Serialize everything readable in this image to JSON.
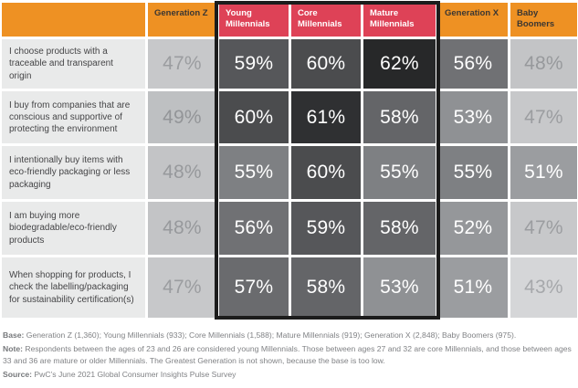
{
  "chart_data": {
    "type": "heatmap",
    "unit": "%",
    "columns": [
      "Generation Z",
      "Young Millennials",
      "Core Millennials",
      "Mature Millennials",
      "Generation X",
      "Baby Boomers"
    ],
    "highlighted_columns": [
      "Young Millennials",
      "Core Millennials",
      "Mature Millennials"
    ],
    "rows": [
      {
        "question": "I choose products with a traceable and transparent origin",
        "values": [
          47,
          59,
          60,
          62,
          56,
          48
        ]
      },
      {
        "question": "I buy from companies that are conscious and supportive of protecting the environment",
        "values": [
          49,
          60,
          61,
          58,
          53,
          47
        ]
      },
      {
        "question": "I intentionally buy items with eco-friendly packaging or less packaging",
        "values": [
          48,
          55,
          60,
          55,
          55,
          51
        ]
      },
      {
        "question": "I am buying more biodegradable/eco-friendly products",
        "values": [
          48,
          56,
          59,
          58,
          52,
          47
        ]
      },
      {
        "question": "When shopping for products, I check the labelling/packaging for sustainability certification(s)",
        "values": [
          47,
          57,
          58,
          53,
          51,
          43
        ]
      }
    ],
    "value_range": [
      43,
      62
    ]
  },
  "styles": {
    "orange": "#EE9123",
    "pink": "#DE4257",
    "box_border": "#1C1C1C",
    "question_bg": "#E9EAEA",
    "value_colors": {
      "43": {
        "bg": "#D5D6D8",
        "fg": "#A6A8AB"
      },
      "47": {
        "bg": "#C7C8CA",
        "fg": "#9B9DA0"
      },
      "48": {
        "bg": "#C3C4C6",
        "fg": "#97999C"
      },
      "49": {
        "bg": "#BEC0C2",
        "fg": "#939598"
      },
      "51": {
        "bg": "#9B9DA0",
        "fg": "#FFFFFF"
      },
      "52": {
        "bg": "#95979A",
        "fg": "#FFFFFF"
      },
      "53": {
        "bg": "#8F9194",
        "fg": "#FFFFFF"
      },
      "55": {
        "bg": "#7E8083",
        "fg": "#FFFFFF"
      },
      "56": {
        "bg": "#707174",
        "fg": "#FFFFFF"
      },
      "57": {
        "bg": "#6A6B6E",
        "fg": "#FFFFFF"
      },
      "58": {
        "bg": "#646568",
        "fg": "#FFFFFF"
      },
      "59": {
        "bg": "#56575A",
        "fg": "#FFFFFF"
      },
      "60": {
        "bg": "#4B4C4E",
        "fg": "#FFFFFF"
      },
      "61": {
        "bg": "#2F3032",
        "fg": "#FFFFFF"
      },
      "62": {
        "bg": "#272829",
        "fg": "#FFFFFF"
      }
    }
  },
  "footer": {
    "base_label": "Base:",
    "base_text": "Generation Z (1,360); Young Millennials (933); Core Millennials (1,588); Mature Millennials (919); Generation X (2,848); Baby Boomers (975).",
    "note_label": "Note:",
    "note_text": "Respondents between the ages of 23 and 26 are considered young Millennials. Those between ages 27 and 32 are core Millennials, and those between ages 33 and 36 are mature or older Millennials. The Greatest Generation is not shown, because the base is too low.",
    "source_label": "Source:",
    "source_text": "PwC’s June 2021 Global Consumer Insights Pulse Survey"
  }
}
